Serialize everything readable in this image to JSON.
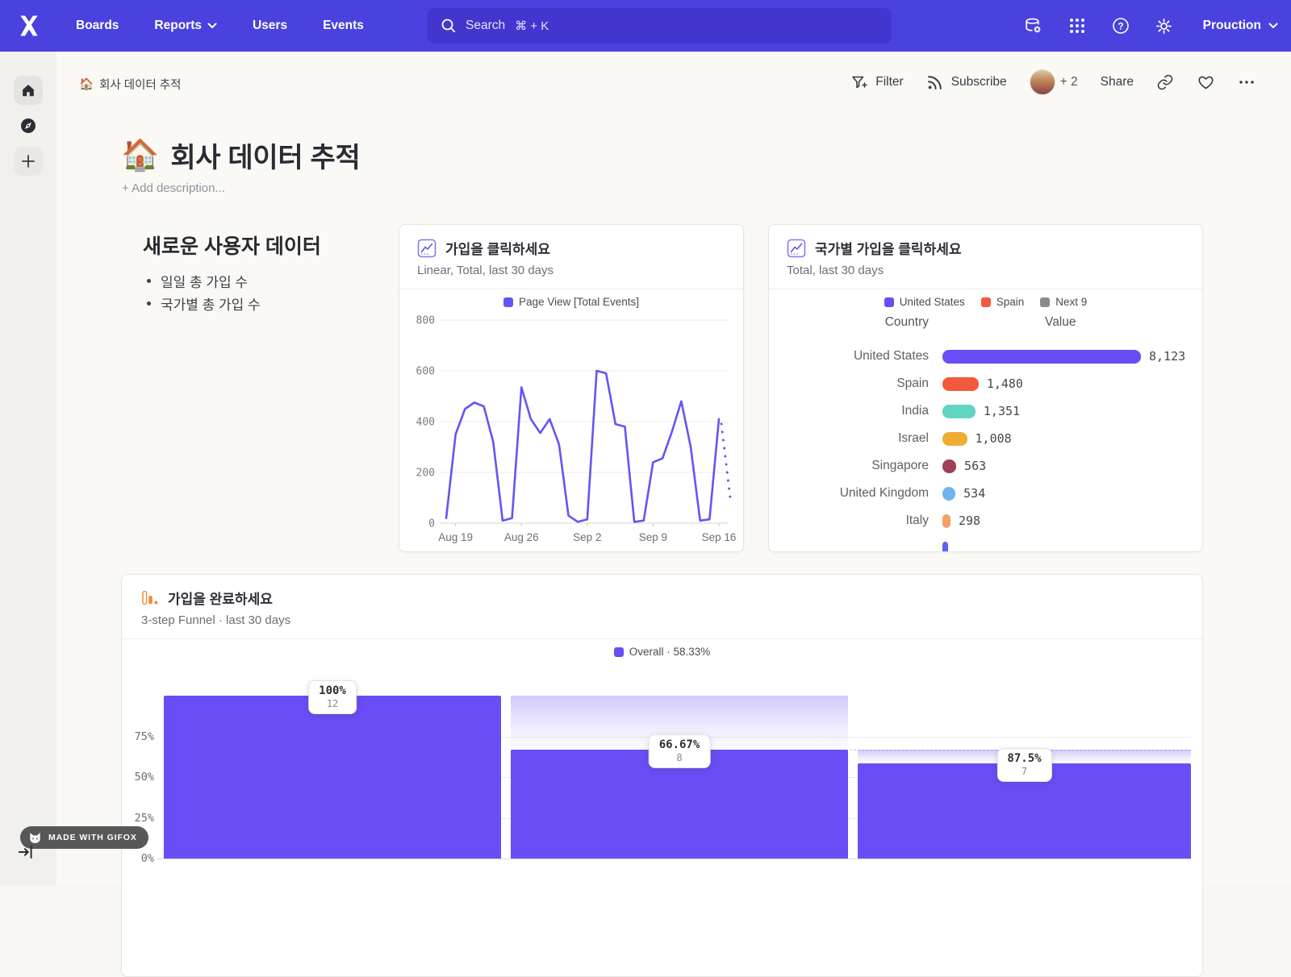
{
  "nav": {
    "items": [
      {
        "label": "Boards"
      },
      {
        "label": "Reports",
        "has_dropdown": true
      },
      {
        "label": "Users"
      },
      {
        "label": "Events"
      }
    ],
    "search": {
      "placeholder": "Search",
      "shortcut": "⌘ + K"
    },
    "project": {
      "name": "Prouction"
    }
  },
  "toolbar": {
    "breadcrumb_icon": "🏠",
    "breadcrumb_text": "회사 데이터 추적",
    "filter_label": "Filter",
    "subscribe_label": "Subscribe",
    "avatar_more": "+ 2",
    "share_label": "Share"
  },
  "page": {
    "title_icon": "🏠",
    "title_text": "회사 데이터 추적",
    "add_description": "+ Add description..."
  },
  "text_card": {
    "heading": "새로운 사용자 데이터",
    "bullets": [
      "일일 총 가입 수",
      "국가별 총 가입 수"
    ]
  },
  "chart_data": [
    {
      "type": "line",
      "title": "가입을 클릭하세요",
      "subtitle": "Linear, Total, last 30 days",
      "legend": [
        {
          "label": "Page View [Total Events]",
          "color": "#6355F5"
        }
      ],
      "line_color": "#6355F5",
      "ylim": [
        0,
        800
      ],
      "y_ticks": [
        0,
        200,
        400,
        600,
        800
      ],
      "x_tick_labels": [
        "Aug 19",
        "Aug 26",
        "Sep 2",
        "Sep 9",
        "Sep 16"
      ],
      "x_tick_indices": [
        1,
        8,
        15,
        22,
        29
      ],
      "values": [
        20,
        350,
        450,
        475,
        460,
        320,
        10,
        20,
        535,
        410,
        355,
        410,
        310,
        30,
        5,
        15,
        600,
        590,
        390,
        380,
        5,
        10,
        240,
        255,
        360,
        480,
        300,
        10,
        15,
        410
      ],
      "incomplete_tail_end": 100,
      "grid": true,
      "legend_position": "top"
    },
    {
      "type": "bar",
      "title": "국가별 가입을 클릭하세요",
      "subtitle": "Total, last 30 days",
      "legend": [
        {
          "label": "United States",
          "color": "#6A4DF4"
        },
        {
          "label": "Spain",
          "color": "#F2593D"
        },
        {
          "label": "Next 9",
          "color": "#8A8A8F"
        }
      ],
      "columns": [
        "Country",
        "Value"
      ],
      "max": 8123,
      "rows": [
        {
          "label": "United States",
          "value": "8,123",
          "num": 8123,
          "color": "#6A4DF4"
        },
        {
          "label": "Spain",
          "value": "1,480",
          "num": 1480,
          "color": "#F2593D"
        },
        {
          "label": "India",
          "value": "1,351",
          "num": 1351,
          "color": "#62D4C2"
        },
        {
          "label": "Israel",
          "value": "1,008",
          "num": 1008,
          "color": "#F0AB33"
        },
        {
          "label": "Singapore",
          "value": "563",
          "num": 563,
          "color": "#9E4258"
        },
        {
          "label": "United Kingdom",
          "value": "534",
          "num": 534,
          "color": "#70B5F0"
        },
        {
          "label": "Italy",
          "value": "298",
          "num": 298,
          "color": "#F5A067"
        }
      ],
      "clipped_next_row": true
    },
    {
      "type": "funnel",
      "title": "가입을 완료하세요",
      "subtitle": "3-step Funnel · last 30 days",
      "legend": [
        {
          "label": "Overall · 58.33%",
          "color": "#6A4DF4"
        }
      ],
      "bar_color": "#6A4DF4",
      "y_tick_labels": [
        "75%",
        "50%",
        "25%",
        "0%"
      ],
      "y_tick_pcts": [
        75,
        50,
        25,
        0
      ],
      "steps": [
        {
          "conversion": "100%",
          "count": "12",
          "overall_pct": 100
        },
        {
          "conversion": "66.67%",
          "count": "8",
          "overall_pct": 66.67
        },
        {
          "conversion": "87.5%",
          "count": "7",
          "overall_pct": 58.33
        }
      ]
    }
  ],
  "footer": {
    "badge": "MADE WITH GIFOX"
  }
}
